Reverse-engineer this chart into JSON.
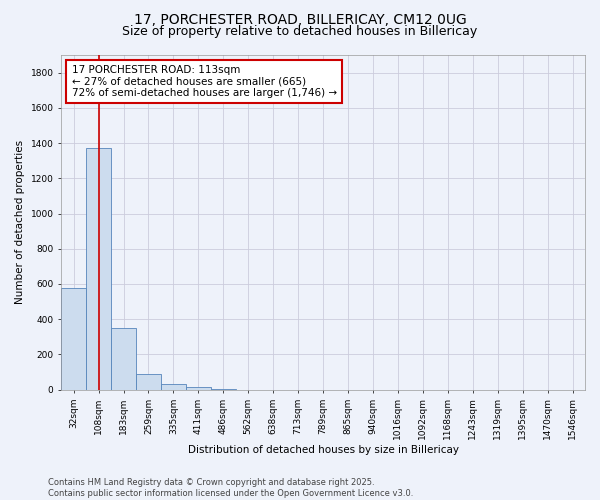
{
  "title_line1": "17, PORCHESTER ROAD, BILLERICAY, CM12 0UG",
  "title_line2": "Size of property relative to detached houses in Billericay",
  "xlabel": "Distribution of detached houses by size in Billericay",
  "ylabel": "Number of detached properties",
  "categories": [
    "32sqm",
    "108sqm",
    "183sqm",
    "259sqm",
    "335sqm",
    "411sqm",
    "486sqm",
    "562sqm",
    "638sqm",
    "713sqm",
    "789sqm",
    "865sqm",
    "940sqm",
    "1016sqm",
    "1092sqm",
    "1168sqm",
    "1243sqm",
    "1319sqm",
    "1395sqm",
    "1470sqm",
    "1546sqm"
  ],
  "values": [
    580,
    1370,
    350,
    90,
    30,
    15,
    5,
    0,
    0,
    0,
    0,
    0,
    0,
    0,
    0,
    0,
    0,
    0,
    0,
    0,
    0
  ],
  "bar_color": "#ccdcee",
  "bar_edge_color": "#5585bb",
  "vline_x": 1.0,
  "vline_color": "#cc0000",
  "annotation_text": "17 PORCHESTER ROAD: 113sqm\n← 27% of detached houses are smaller (665)\n72% of semi-detached houses are larger (1,746) →",
  "annotation_box_color": "#ffffff",
  "annotation_box_edge": "#cc0000",
  "ylim": [
    0,
    1900
  ],
  "yticks": [
    0,
    200,
    400,
    600,
    800,
    1000,
    1200,
    1400,
    1600,
    1800
  ],
  "bg_color": "#eef2fa",
  "grid_color": "#ccccdd",
  "footnote": "Contains HM Land Registry data © Crown copyright and database right 2025.\nContains public sector information licensed under the Open Government Licence v3.0.",
  "title_fontsize": 10,
  "subtitle_fontsize": 9,
  "axis_label_fontsize": 7.5,
  "tick_fontsize": 6.5,
  "annotation_fontsize": 7.5,
  "footnote_fontsize": 6
}
